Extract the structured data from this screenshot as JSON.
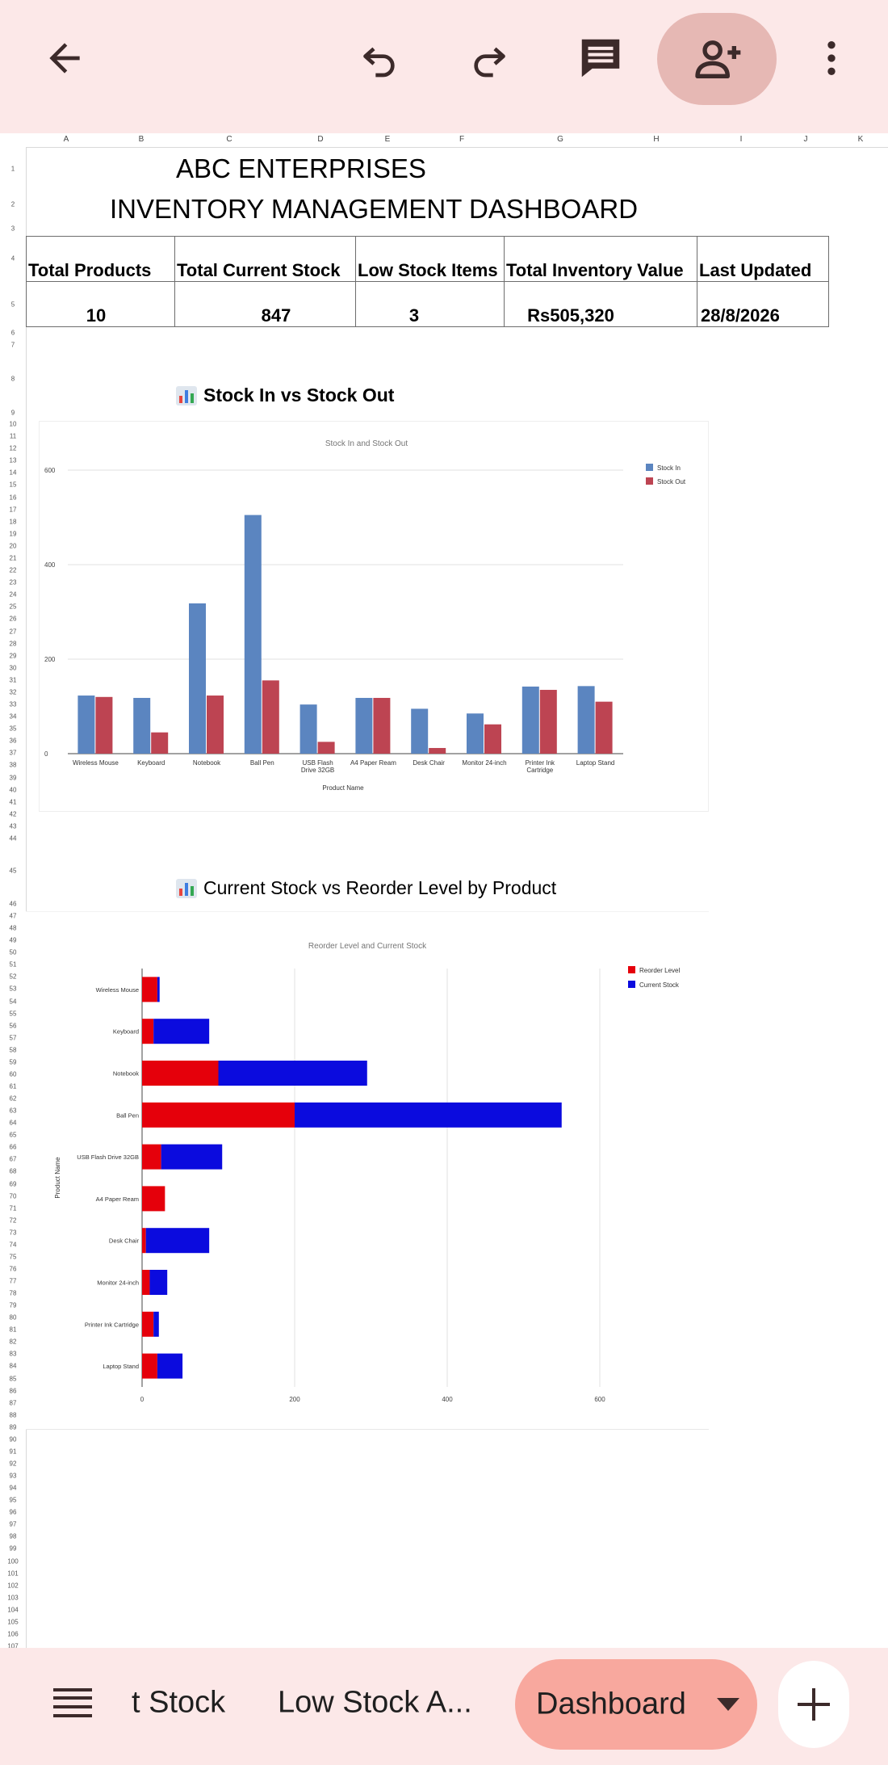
{
  "toolbar": {
    "back_icon": "arrow-left-icon",
    "undo_icon": "undo-icon",
    "redo_icon": "redo-icon",
    "comment_icon": "comment-icon",
    "share_icon": "person-add-icon",
    "more_icon": "more-vert-icon"
  },
  "sheet": {
    "columns": [
      "A",
      "B",
      "C",
      "D",
      "E",
      "F",
      "G",
      "H",
      "I",
      "J",
      "K"
    ],
    "title_line1": "ABC ENTERPRISES",
    "title_line2": "INVENTORY MANAGEMENT DASHBOARD",
    "kpis": [
      {
        "label": "Total Products",
        "value": "10"
      },
      {
        "label": "Total Current Stock",
        "value": "847"
      },
      {
        "label": "Low Stock Items",
        "value": "3"
      },
      {
        "label": "Total Inventory Value",
        "value": "Rs505,320"
      },
      {
        "label": "Last Updated",
        "value": "28/8/2026"
      }
    ],
    "chart1_heading": "Stock In vs Stock Out",
    "chart2_heading": "Current Stock vs Reorder Level by Product"
  },
  "colors": {
    "stock_in": "#5b85c0",
    "stock_out": "#bd4452",
    "reorder_level": "#e5000b",
    "current_stock": "#0b0bde"
  },
  "chart_data": [
    {
      "type": "bar",
      "title": "Stock In and Stock Out",
      "xlabel": "Product Name",
      "ylabel": "",
      "categories": [
        "Wireless Mouse",
        "Keyboard",
        "Notebook",
        "Ball Pen",
        "USB Flash Drive 32GB",
        "A4 Paper Ream",
        "Desk Chair",
        "Monitor 24-inch",
        "Printer Ink Cartridge",
        "Laptop Stand"
      ],
      "series": [
        {
          "name": "Stock In",
          "values": [
            123,
            118,
            318,
            505,
            104,
            118,
            95,
            85,
            142,
            143
          ]
        },
        {
          "name": "Stock Out",
          "values": [
            120,
            45,
            123,
            155,
            25,
            118,
            12,
            62,
            135,
            110
          ]
        }
      ],
      "ylim": [
        0,
        600
      ],
      "yticks": [
        0,
        200,
        400,
        600
      ],
      "grid": true,
      "legend": "top-right"
    },
    {
      "type": "bar",
      "orientation": "horizontal",
      "stacked": true,
      "title": "Reorder Level and Current Stock",
      "xlabel": "",
      "ylabel": "Product Name",
      "categories": [
        "Wireless Mouse",
        "Keyboard",
        "Notebook",
        "Ball Pen",
        "USB Flash Drive 32GB",
        "A4 Paper Ream",
        "Desk Chair",
        "Monitor 24-inch",
        "Printer Ink Cartridge",
        "Laptop Stand"
      ],
      "series": [
        {
          "name": "Reorder Level",
          "values": [
            20,
            15,
            100,
            200,
            25,
            30,
            5,
            10,
            15,
            20
          ]
        },
        {
          "name": "Current Stock",
          "values": [
            3,
            73,
            195,
            350,
            80,
            0,
            83,
            23,
            7,
            33
          ]
        }
      ],
      "xlim": [
        0,
        600
      ],
      "xticks": [
        0,
        200,
        400,
        600
      ],
      "grid": true,
      "legend": "top-right"
    }
  ],
  "bottom_tabs": {
    "menu_icon": "menu-icon",
    "tabs": [
      "t Stock",
      "Low Stock A..."
    ],
    "active_tab": "Dashboard",
    "dropdown_icon": "caret-down-icon",
    "add_icon": "plus-icon"
  }
}
